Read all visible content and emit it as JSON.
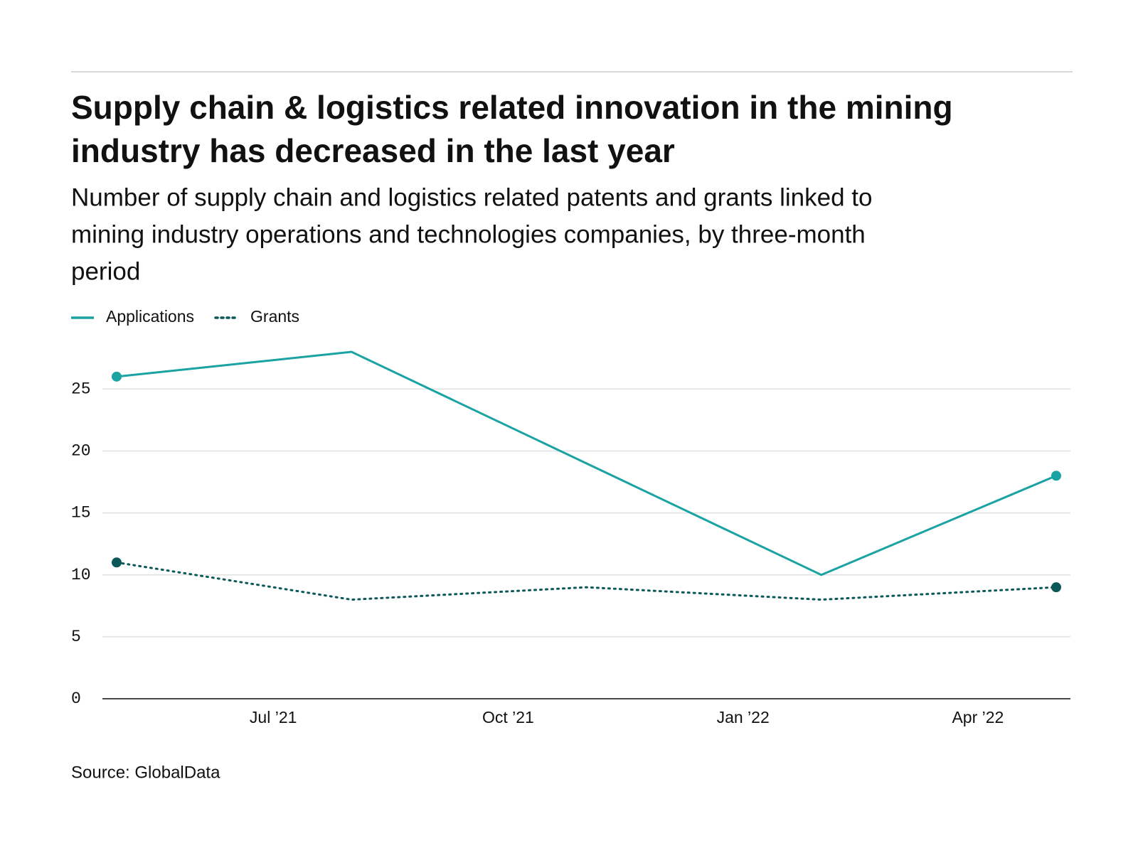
{
  "chart_data": {
    "type": "line",
    "title_lines": [
      "Supply chain & logistics related innovation in the mining",
      "industry has decreased in the last year"
    ],
    "subtitle_lines": [
      "Number of supply chain and logistics related patents and grants linked to",
      "mining industry operations and technologies companies, by three-month",
      "period"
    ],
    "x": [
      "2021-05",
      "2021-08",
      "2021-11",
      "2022-02",
      "2022-05"
    ],
    "series": [
      {
        "name": "Applications",
        "color": "#1ba3a3",
        "style": "solid",
        "values": [
          26,
          28,
          19,
          10,
          18
        ]
      },
      {
        "name": "Grants",
        "color": "#0b5858",
        "style": "dotted",
        "values": [
          11,
          8,
          9,
          8,
          9
        ]
      }
    ],
    "xlim": [
      "2021-05",
      "2022-05"
    ],
    "xticks": [
      {
        "value": "2021-07",
        "label": "Jul ’21"
      },
      {
        "value": "2021-10",
        "label": "Oct ’21"
      },
      {
        "value": "2022-01",
        "label": "Jan ’22"
      },
      {
        "value": "2022-04",
        "label": "Apr ’22"
      }
    ],
    "ylim": [
      0,
      28
    ],
    "yticks": [
      0,
      5,
      10,
      15,
      20,
      25
    ],
    "grid": true,
    "legend": "top-left",
    "source": "Source: GlobalData"
  }
}
